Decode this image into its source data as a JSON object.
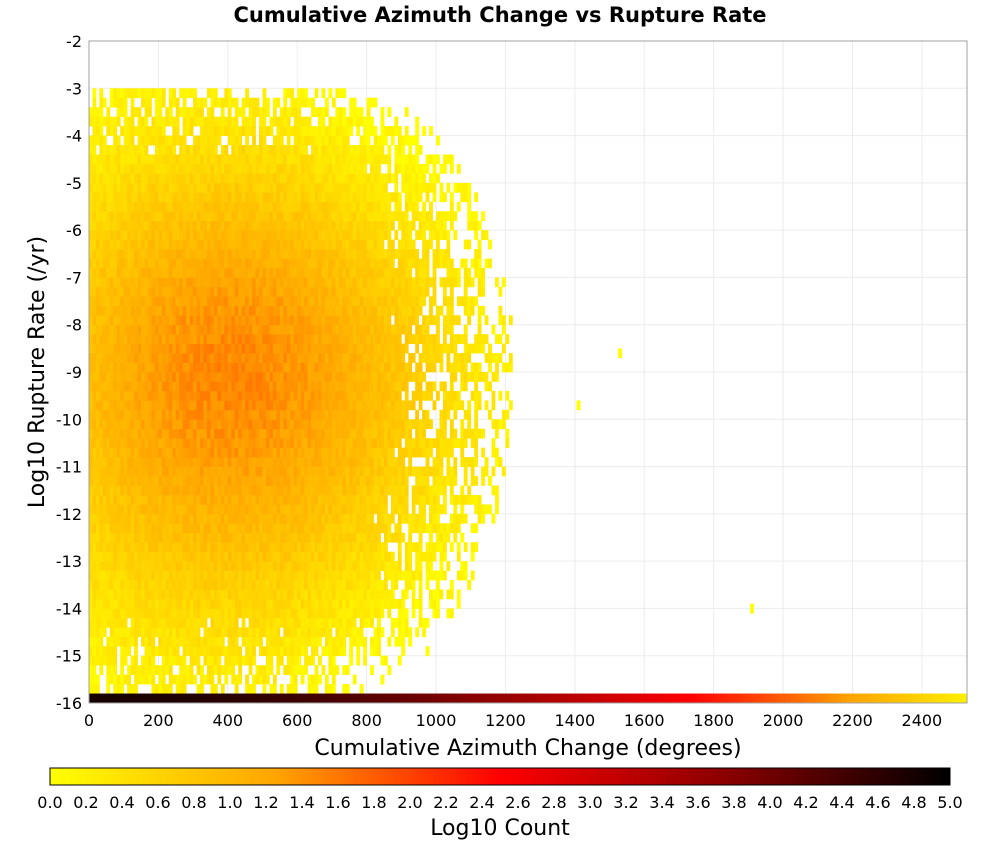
{
  "chart_data": {
    "type": "heatmap",
    "title": "Cumulative Azimuth Change vs Rupture Rate",
    "xlabel": "Cumulative Azimuth Change (degrees)",
    "ylabel": "Log10 Rupture Rate (/yr)",
    "xlim": [
      0,
      2530
    ],
    "ylim": [
      -16,
      -2
    ],
    "x_ticks": [
      0,
      200,
      400,
      600,
      800,
      1000,
      1200,
      1400,
      1600,
      1800,
      2000,
      2200,
      2400
    ],
    "y_ticks": [
      -2,
      -3,
      -4,
      -5,
      -6,
      -7,
      -8,
      -9,
      -10,
      -11,
      -12,
      -13,
      -14,
      -15,
      -16
    ],
    "grid": true,
    "bin_width_x": 10,
    "bin_height_y": 0.2,
    "colorbar": {
      "label": "Log10 Count",
      "range": [
        0,
        5
      ],
      "ticks": [
        "0.0",
        "0.2",
        "0.4",
        "0.6",
        "0.8",
        "1.0",
        "1.2",
        "1.4",
        "1.6",
        "1.8",
        "2.0",
        "2.2",
        "2.4",
        "2.6",
        "2.8",
        "3.0",
        "3.2",
        "3.4",
        "3.6",
        "3.8",
        "4.0",
        "4.2",
        "4.4",
        "4.6",
        "4.8",
        "5.0"
      ],
      "colors": [
        "#ffff00",
        "#ffa500",
        "#ff0000",
        "#8b0000",
        "#000000"
      ],
      "placement": "bottom"
    },
    "density_summary": {
      "peak_log10_count_approx": 1.6,
      "peak_center": {
        "x": 400,
        "y": -9.0
      },
      "x_extent_main": [
        0,
        1100
      ],
      "upper_edge_log_rate": -3,
      "lower_edge_log_rate": -15.8
    },
    "outliers": [
      {
        "x": 1530,
        "y": -8.6,
        "log10_count": 0.0
      },
      {
        "x": 1410,
        "y": -9.7,
        "log10_count": 0.0
      },
      {
        "x": 1910,
        "y": -14.0,
        "log10_count": 0.0
      }
    ],
    "bottom_row": {
      "y": -15.9,
      "note": "row of counts at log rate -16, log10 count decreasing from about 4.8 at x=0 to about 0.2 at x=2530"
    }
  }
}
